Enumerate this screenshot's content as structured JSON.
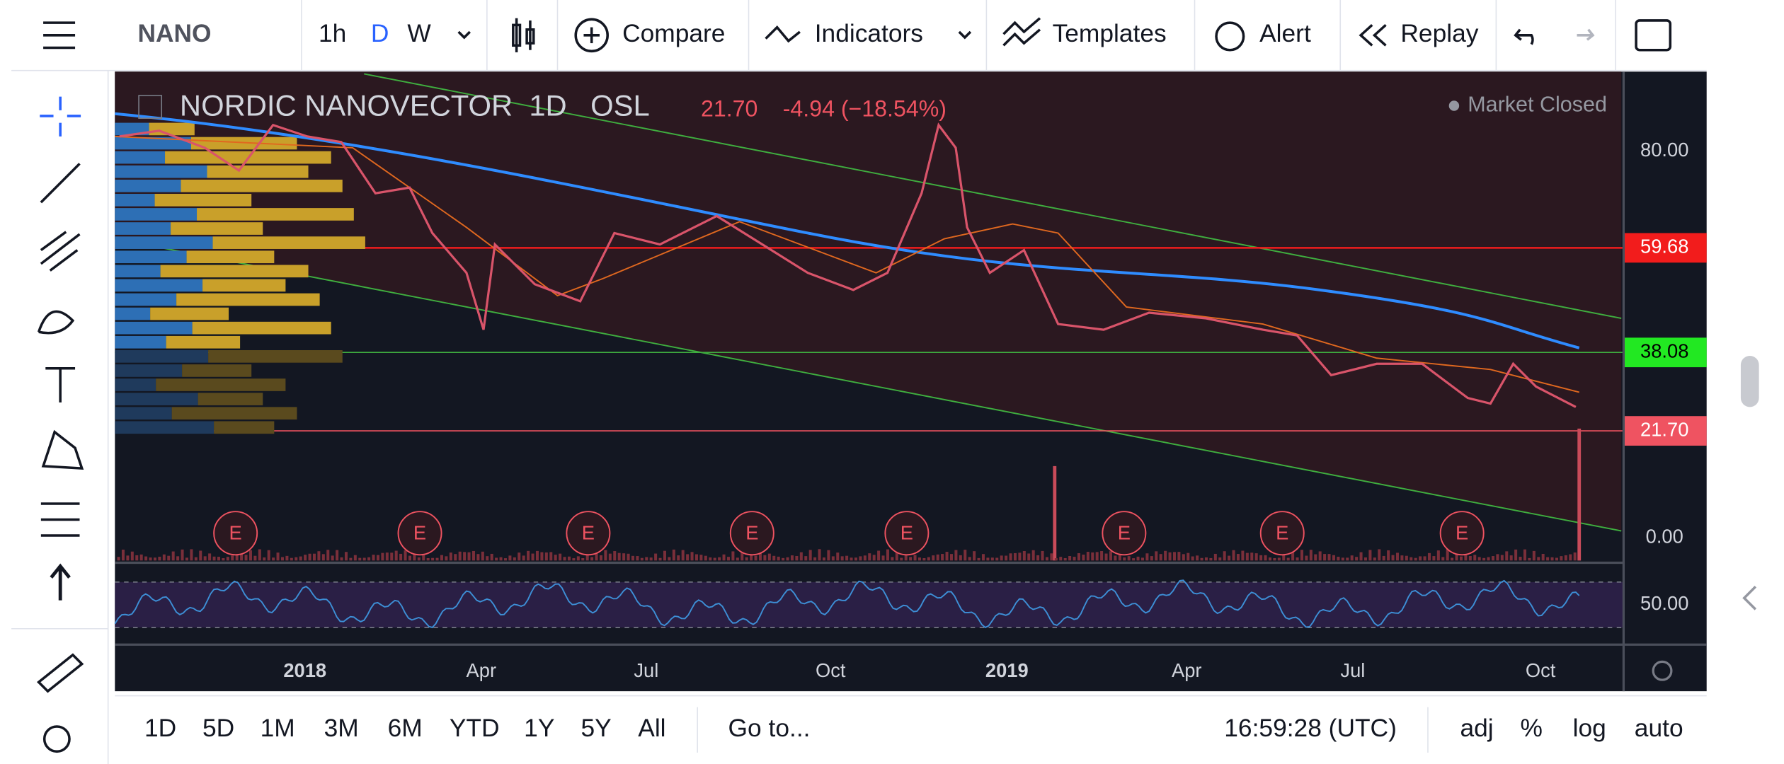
{
  "top_toolbar": {
    "symbol": "NANO",
    "intervals": [
      "1h",
      "D",
      "W"
    ],
    "buttons": [
      "Compare",
      "Indicators",
      "Templates",
      "Alert",
      "Replay"
    ]
  },
  "legend": {
    "name": "NORDIC NANOVECTOR",
    "interval": "1D",
    "exchange": "OSL",
    "price": "21.70",
    "change": "-4.94 (−18.54%)",
    "status": "Market Closed"
  },
  "price_axis": [
    "80.00",
    "59.68",
    "38.08",
    "21.70",
    "0.00",
    "50.00"
  ],
  "time_axis": [
    "2018",
    "Apr",
    "Jul",
    "Oct",
    "2019",
    "Apr",
    "Jul",
    "Oct"
  ],
  "earnings_markers": [
    "E",
    "E",
    "E",
    "E",
    "E",
    "E",
    "E",
    "E"
  ],
  "bottom_toolbar": {
    "ranges": [
      "1D",
      "5D",
      "1M",
      "3M",
      "6M",
      "YTD",
      "1Y",
      "5Y",
      "All"
    ],
    "goto": "Go to...",
    "clock": "16:59:28 (UTC)",
    "options": [
      "adj",
      "%",
      "log",
      "auto"
    ]
  }
}
